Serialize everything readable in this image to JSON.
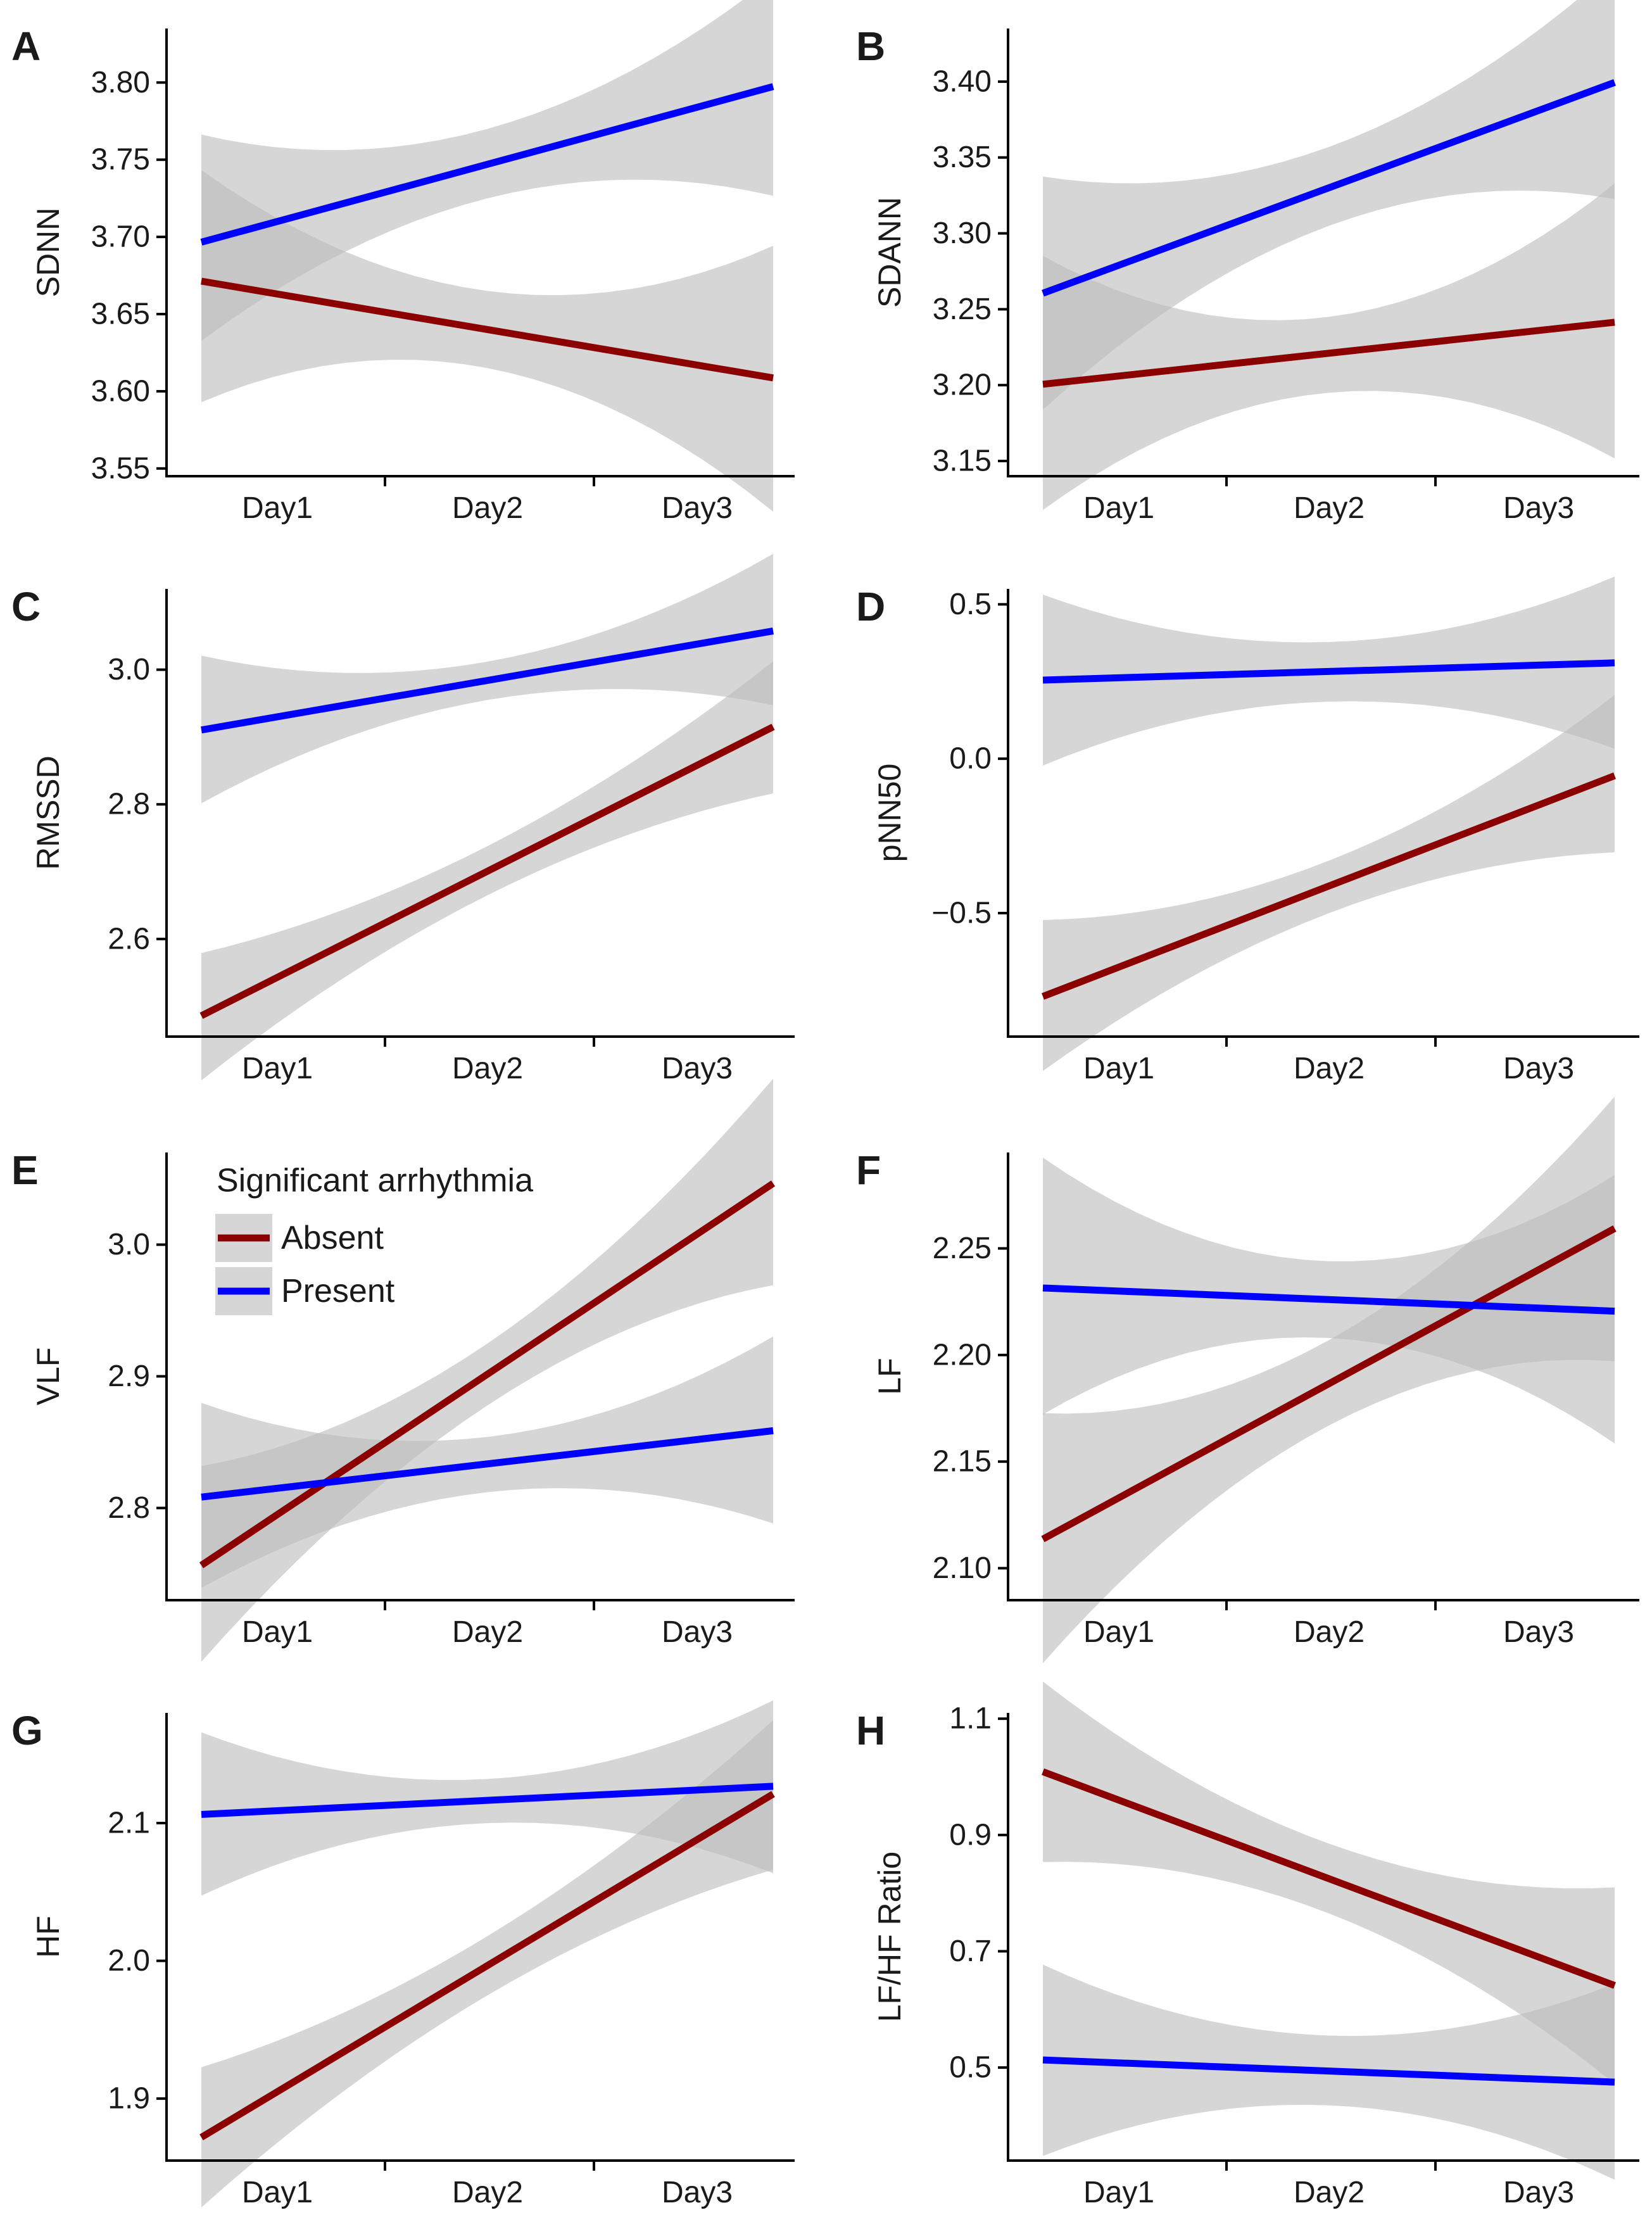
{
  "figure_title": "",
  "colors": {
    "absent": "#8b0000",
    "present": "#0000ff",
    "band": "#bdbdbd"
  },
  "legend": {
    "title": "Significant arrhythmia",
    "items": [
      "Absent",
      "Present"
    ]
  },
  "chart_data": [
    {
      "panel": "A",
      "type": "line",
      "ylabel": "SDNN",
      "xlabel": "",
      "categories": [
        "Day1",
        "Day2",
        "Day3"
      ],
      "ylim": [
        3.545,
        3.835
      ],
      "yticks": [
        3.55,
        3.6,
        3.65,
        3.7,
        3.75,
        3.8
      ],
      "yticklabels": [
        "3.55",
        "3.60",
        "3.65",
        "3.70",
        "3.75",
        "3.80"
      ],
      "series": [
        {
          "name": "Absent",
          "values": [
            3.663,
            3.64,
            3.617
          ],
          "ci_low": [
            3.61,
            3.615,
            3.558
          ],
          "ci_high": [
            3.712,
            3.665,
            3.676
          ]
        },
        {
          "name": "Present",
          "values": [
            3.71,
            3.748,
            3.784
          ],
          "ci_low": [
            3.666,
            3.725,
            3.735
          ],
          "ci_high": [
            3.758,
            3.77,
            3.833
          ]
        }
      ]
    },
    {
      "panel": "B",
      "type": "line",
      "ylabel": "SDANN",
      "xlabel": "",
      "categories": [
        "Day1",
        "Day2",
        "Day3"
      ],
      "ylim": [
        3.14,
        3.435
      ],
      "yticks": [
        3.15,
        3.2,
        3.25,
        3.3,
        3.35,
        3.4
      ],
      "yticklabels": [
        "3.15",
        "3.20",
        "3.25",
        "3.30",
        "3.35",
        "3.40"
      ],
      "series": [
        {
          "name": "Absent",
          "values": [
            3.206,
            3.221,
            3.236
          ],
          "ci_low": [
            3.15,
            3.195,
            3.175
          ],
          "ci_high": [
            3.262,
            3.245,
            3.297
          ]
        },
        {
          "name": "Present",
          "values": [
            3.279,
            3.331,
            3.381
          ],
          "ci_low": [
            3.226,
            3.305,
            3.328
          ],
          "ci_high": [
            3.333,
            3.357,
            3.434
          ]
        }
      ]
    },
    {
      "panel": "C",
      "type": "line",
      "ylabel": "RMSSD",
      "xlabel": "",
      "categories": [
        "Day1",
        "Day2",
        "Day3"
      ],
      "ylim": [
        2.455,
        3.12
      ],
      "yticks": [
        2.6,
        2.8,
        3.0
      ],
      "yticklabels": [
        "2.6",
        "2.8",
        "3.0"
      ],
      "series": [
        {
          "name": "Absent",
          "values": [
            2.543,
            2.702,
            2.858
          ],
          "ci_low": [
            2.475,
            2.665,
            2.788
          ],
          "ci_high": [
            2.61,
            2.738,
            2.928
          ]
        },
        {
          "name": "Present",
          "values": [
            2.93,
            2.984,
            3.038
          ],
          "ci_low": [
            2.858,
            2.955,
            2.965
          ],
          "ci_high": [
            3.002,
            3.012,
            3.113
          ]
        }
      ]
    },
    {
      "panel": "D",
      "type": "line",
      "ylabel": "pNN50",
      "xlabel": "",
      "categories": [
        "Day1",
        "Day2",
        "Day3"
      ],
      "ylim": [
        -0.9,
        0.55
      ],
      "yticks": [
        -0.5,
        0.0,
        0.5
      ],
      "yticklabels": [
        "−0.5",
        "0.0",
        "0.5"
      ],
      "series": [
        {
          "name": "Absent",
          "values": [
            -0.675,
            -0.415,
            -0.15
          ],
          "ci_low": [
            -0.845,
            -0.5,
            -0.325
          ],
          "ci_high": [
            -0.505,
            -0.33,
            0.03
          ]
        },
        {
          "name": "Present",
          "values": [
            0.262,
            0.282,
            0.303
          ],
          "ci_low": [
            0.068,
            0.185,
            0.108
          ],
          "ci_high": [
            0.455,
            0.378,
            0.498
          ]
        }
      ]
    },
    {
      "panel": "E",
      "type": "line",
      "ylabel": "VLF",
      "xlabel": "",
      "categories": [
        "Day1",
        "Day2",
        "Day3"
      ],
      "ylim": [
        2.73,
        3.07
      ],
      "yticks": [
        2.8,
        2.9,
        3.0
      ],
      "yticklabels": [
        "2.8",
        "2.9",
        "3.0"
      ],
      "series": [
        {
          "name": "Absent",
          "values": [
            2.795,
            2.901,
            3.008
          ],
          "ci_low": [
            2.745,
            2.878,
            2.955
          ],
          "ci_high": [
            2.846,
            2.925,
            3.062
          ]
        },
        {
          "name": "Present",
          "values": [
            2.815,
            2.833,
            2.852
          ],
          "ci_low": [
            2.768,
            2.812,
            2.804
          ],
          "ci_high": [
            2.863,
            2.854,
            2.9
          ]
        }
      ]
    },
    {
      "panel": "F",
      "type": "line",
      "ylabel": "LF",
      "xlabel": "",
      "categories": [
        "Day1",
        "Day2",
        "Day3"
      ],
      "ylim": [
        2.085,
        2.295
      ],
      "yticks": [
        2.1,
        2.15,
        2.2,
        2.25
      ],
      "yticklabels": [
        "2.10",
        "2.15",
        "2.20",
        "2.25"
      ],
      "series": [
        {
          "name": "Absent",
          "values": [
            2.133,
            2.187,
            2.24
          ],
          "ci_low": [
            2.093,
            2.167,
            2.197
          ],
          "ci_high": [
            2.174,
            2.207,
            2.283
          ]
        },
        {
          "name": "Present",
          "values": [
            2.23,
            2.226,
            2.222
          ],
          "ci_low": [
            2.19,
            2.208,
            2.18
          ],
          "ci_high": [
            2.271,
            2.244,
            2.265
          ]
        }
      ]
    },
    {
      "panel": "G",
      "type": "line",
      "ylabel": "HF",
      "xlabel": "",
      "categories": [
        "Day1",
        "Day2",
        "Day3"
      ],
      "ylim": [
        1.855,
        2.18
      ],
      "yticks": [
        1.9,
        2.0,
        2.1
      ],
      "yticklabels": [
        "1.9",
        "2.0",
        "2.1"
      ],
      "series": [
        {
          "name": "Absent",
          "values": [
            1.905,
            1.996,
            2.088
          ],
          "ci_low": [
            1.868,
            1.975,
            2.048
          ],
          "ci_high": [
            1.942,
            2.018,
            2.127
          ]
        },
        {
          "name": "Present",
          "values": [
            2.109,
            2.116,
            2.124
          ],
          "ci_low": [
            2.07,
            2.1,
            2.082
          ],
          "ci_high": [
            2.148,
            2.132,
            2.165
          ]
        }
      ]
    },
    {
      "panel": "H",
      "type": "line",
      "ylabel": "LF/HF Ratio",
      "xlabel": "",
      "categories": [
        "Day1",
        "Day2",
        "Day3"
      ],
      "ylim": [
        0.34,
        1.11
      ],
      "yticks": [
        0.5,
        0.7,
        0.9,
        1.1
      ],
      "yticklabels": [
        "0.5",
        "0.7",
        "0.9",
        "1.1"
      ],
      "series": [
        {
          "name": "Absent",
          "values": [
            0.96,
            0.825,
            0.69
          ],
          "ci_low": [
            0.85,
            0.765,
            0.57
          ],
          "ci_high": [
            1.07,
            0.885,
            0.81
          ]
        },
        {
          "name": "Present",
          "values": [
            0.508,
            0.495,
            0.48
          ],
          "ci_low": [
            0.392,
            0.435,
            0.362
          ],
          "ci_high": [
            0.624,
            0.555,
            0.6
          ]
        }
      ]
    }
  ]
}
